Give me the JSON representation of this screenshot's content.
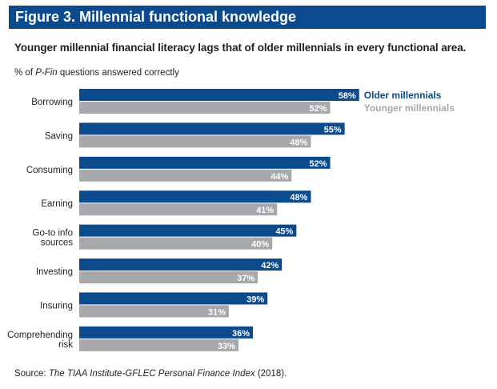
{
  "figure_label": "Figure 3. Millennial functional knowledge",
  "subtitle": "Younger millennial financial literacy lags that of older millennials in every functional area.",
  "ylabel_prefix": "% of ",
  "ylabel_italic": "P-Fin",
  "ylabel_suffix": " questions answered correctly",
  "source_prefix": "Source: ",
  "source_italic": "The TIAA Institute-GFLEC Personal Finance Index",
  "source_suffix": " (2018).",
  "colors": {
    "title_bar": "#0b4a8c",
    "older": "#0b4a8c",
    "younger": "#a6a8ab"
  },
  "chart_data": {
    "type": "bar",
    "orientation": "horizontal",
    "categories": [
      [
        "Borrowing"
      ],
      [
        "Saving"
      ],
      [
        "Consuming"
      ],
      [
        "Earning"
      ],
      [
        "Go-to info",
        "sources"
      ],
      [
        "Investing"
      ],
      [
        "Insuring"
      ],
      [
        "Comprehending",
        "risk"
      ]
    ],
    "series": [
      {
        "name": "Older millennials",
        "values": [
          58,
          55,
          52,
          48,
          45,
          42,
          39,
          36
        ],
        "labels": [
          "58%",
          "55%",
          "52%",
          "48%",
          "45%",
          "42%",
          "39%",
          "36%"
        ]
      },
      {
        "name": "Younger millennials",
        "values": [
          52,
          48,
          44,
          41,
          40,
          37,
          31,
          33
        ],
        "labels": [
          "52%",
          "48%",
          "44%",
          "41%",
          "40%",
          "37%",
          "31%",
          "33%"
        ]
      }
    ],
    "unit": "%",
    "legend_position": "right of first category",
    "grid": false
  }
}
